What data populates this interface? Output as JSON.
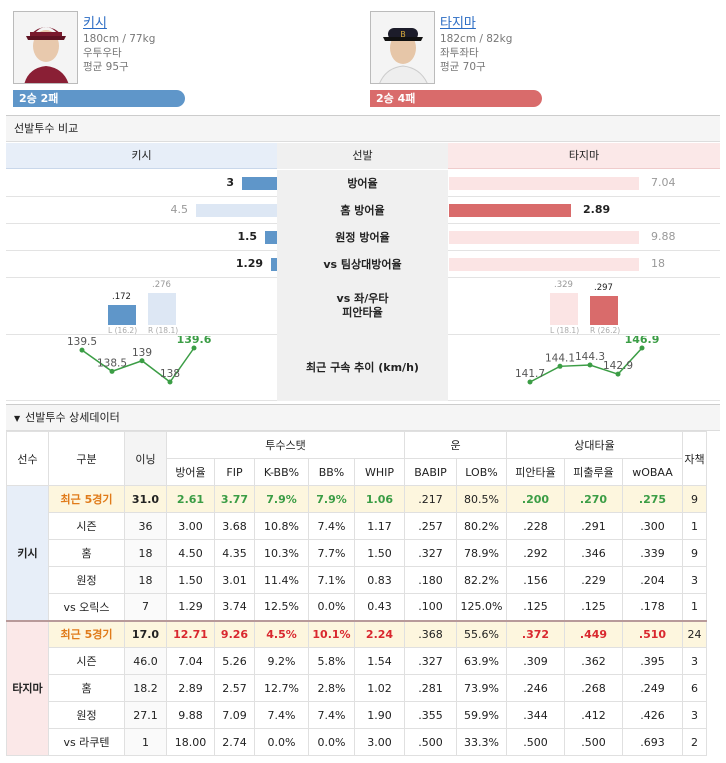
{
  "players": {
    "left": {
      "name": "키시",
      "height_weight": "180cm / 77kg",
      "handed": "우투우타",
      "avg_speed": "평균 95구",
      "record": "2승 2패",
      "color": "#5f96c9"
    },
    "right": {
      "name": "타지마",
      "height_weight": "182cm / 82kg",
      "handed": "좌투좌타",
      "avg_speed": "평균 70구",
      "record": "2승 4패",
      "color": "#d96b6b"
    }
  },
  "compare": {
    "title": "선발투수 비교",
    "header": {
      "left": "키시",
      "center": "선발",
      "right": "타지마"
    },
    "rows": [
      {
        "label": "방어율",
        "left": "3",
        "right": "7.04",
        "left_frac": 0.43,
        "right_frac": 1.0,
        "winner": "left"
      },
      {
        "label": "홈 방어율",
        "left": "4.5",
        "right": "2.89",
        "left_frac": 1.0,
        "right_frac": 0.64,
        "winner": "right"
      },
      {
        "label": "원정 방어율",
        "left": "1.5",
        "right": "9.88",
        "left_frac": 0.15,
        "right_frac": 1.0,
        "winner": "left"
      },
      {
        "label": "vs 팀상대방어율",
        "left": "1.29",
        "right": "18",
        "left_frac": 0.07,
        "right_frac": 1.0,
        "winner": "left"
      }
    ],
    "split": {
      "label_line1": "vs 좌/우타",
      "label_line2": "피안타율",
      "left": {
        "L": ".172",
        "R": ".276",
        "L_sub": "L (16.2)",
        "R_sub": "R (18.1)",
        "L_frac": 0.62,
        "R_frac": 1.0
      },
      "right": {
        "L": ".329",
        "R": ".297",
        "L_sub": "L (18.1)",
        "R_sub": "R (26.2)",
        "L_frac": 1.0,
        "R_frac": 0.9
      }
    },
    "velo": {
      "label": "최근 구속 추이 (km/h)",
      "left": [
        "139.5",
        "138.5",
        "139",
        "138",
        "139.6"
      ],
      "right": [
        "141.7",
        "144.1",
        "144.3",
        "142.9",
        "146.9"
      ]
    }
  },
  "detail": {
    "title": "선발투수 상세데이터",
    "groups": {
      "pitch": "투수스탯",
      "luck": "운",
      "opp": "상대타율"
    },
    "cols": [
      "선수",
      "구분",
      "이닝",
      "방어율",
      "FIP",
      "K-BB%",
      "BB%",
      "WHIP",
      "BABIP",
      "LOB%",
      "피안타율",
      "피출루율",
      "wOBAA",
      "자책"
    ],
    "kishi": {
      "name": "키시",
      "rows": [
        [
          "최근 5경기",
          "31.0",
          "2.61",
          "3.77",
          "7.9%",
          "7.9%",
          "1.06",
          ".217",
          "80.5%",
          ".200",
          ".270",
          ".275",
          "9"
        ],
        [
          "시즌",
          "36",
          "3.00",
          "3.68",
          "10.8%",
          "7.4%",
          "1.17",
          ".257",
          "80.2%",
          ".228",
          ".291",
          ".300",
          "1"
        ],
        [
          "홈",
          "18",
          "4.50",
          "4.35",
          "10.3%",
          "7.7%",
          "1.50",
          ".327",
          "78.9%",
          ".292",
          ".346",
          ".339",
          "9"
        ],
        [
          "원정",
          "18",
          "1.50",
          "3.01",
          "11.4%",
          "7.1%",
          "0.83",
          ".180",
          "82.2%",
          ".156",
          ".229",
          ".204",
          "3"
        ],
        [
          "vs 오릭스",
          "7",
          "1.29",
          "3.74",
          "12.5%",
          "0.0%",
          "0.43",
          ".100",
          "125.0%",
          ".125",
          ".125",
          ".178",
          "1"
        ]
      ]
    },
    "tajima": {
      "name": "타지마",
      "rows": [
        [
          "최근 5경기",
          "17.0",
          "12.71",
          "9.26",
          "4.5%",
          "10.1%",
          "2.24",
          ".368",
          "55.6%",
          ".372",
          ".449",
          ".510",
          "24"
        ],
        [
          "시즌",
          "46.0",
          "7.04",
          "5.26",
          "9.2%",
          "5.8%",
          "1.54",
          ".327",
          "63.9%",
          ".309",
          ".362",
          ".395",
          "3"
        ],
        [
          "홈",
          "18.2",
          "2.89",
          "2.57",
          "12.7%",
          "2.8%",
          "1.02",
          ".281",
          "73.9%",
          ".246",
          ".268",
          ".249",
          "6"
        ],
        [
          "원정",
          "27.1",
          "9.88",
          "7.09",
          "7.4%",
          "7.4%",
          "1.90",
          ".355",
          "59.9%",
          ".344",
          ".412",
          ".426",
          "3"
        ],
        [
          "vs 라쿠텐",
          "1",
          "18.00",
          "2.74",
          "0.0%",
          "0.0%",
          "3.00",
          ".500",
          "33.3%",
          ".500",
          ".500",
          ".693",
          "2"
        ]
      ]
    }
  }
}
